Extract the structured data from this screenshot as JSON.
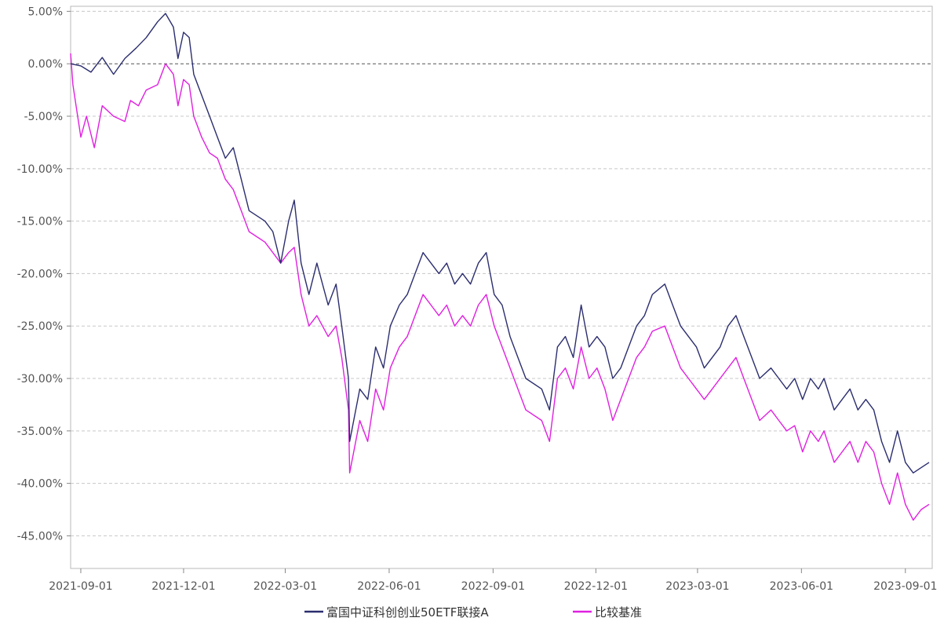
{
  "chart_data": {
    "type": "line",
    "title": "",
    "xlabel": "",
    "ylabel": "",
    "ylim": [
      -0.46,
      0.05
    ],
    "y_ticks": [
      {
        "value": 0.05,
        "label": "5.00%"
      },
      {
        "value": 0.0,
        "label": "0.00%"
      },
      {
        "value": -0.05,
        "label": "-5.00%"
      },
      {
        "value": -0.1,
        "label": "-10.00%"
      },
      {
        "value": -0.15,
        "label": "-15.00%"
      },
      {
        "value": -0.2,
        "label": "-20.00%"
      },
      {
        "value": -0.25,
        "label": "-25.00%"
      },
      {
        "value": -0.3,
        "label": "-30.00%"
      },
      {
        "value": -0.35,
        "label": "-35.00%"
      },
      {
        "value": -0.4,
        "label": "-40.00%"
      },
      {
        "value": -0.45,
        "label": "-45.00%"
      }
    ],
    "x_ticks": [
      "2021-09-01",
      "2021-12-01",
      "2022-03-01",
      "2022-06-01",
      "2022-09-01",
      "2022-12-01",
      "2023-03-01",
      "2023-06-01",
      "2023-09-01"
    ],
    "xlim": [
      "2021-08-23",
      "2023-09-22"
    ],
    "grid": true,
    "legend_position": "bottom-center",
    "series": [
      {
        "name": "富国中证科创创业50ETF联接A",
        "color": "#2b2d6e",
        "points": [
          [
            "2021-08-23",
            0.0
          ],
          [
            "2021-09-01",
            -0.002
          ],
          [
            "2021-09-10",
            -0.008
          ],
          [
            "2021-09-20",
            0.006
          ],
          [
            "2021-09-30",
            -0.01
          ],
          [
            "2021-10-10",
            0.005
          ],
          [
            "2021-10-20",
            0.015
          ],
          [
            "2021-10-29",
            0.025
          ],
          [
            "2021-11-08",
            0.04
          ],
          [
            "2021-11-15",
            0.048
          ],
          [
            "2021-11-22",
            0.035
          ],
          [
            "2021-11-26",
            0.005
          ],
          [
            "2021-12-01",
            0.03
          ],
          [
            "2021-12-06",
            0.025
          ],
          [
            "2021-12-10",
            -0.01
          ],
          [
            "2021-12-17",
            -0.03
          ],
          [
            "2021-12-24",
            -0.05
          ],
          [
            "2021-12-31",
            -0.07
          ],
          [
            "2022-01-07",
            -0.09
          ],
          [
            "2022-01-14",
            -0.08
          ],
          [
            "2022-01-21",
            -0.11
          ],
          [
            "2022-01-28",
            -0.14
          ],
          [
            "2022-02-11",
            -0.15
          ],
          [
            "2022-02-18",
            -0.16
          ],
          [
            "2022-02-25",
            -0.19
          ],
          [
            "2022-03-04",
            -0.15
          ],
          [
            "2022-03-09",
            -0.13
          ],
          [
            "2022-03-15",
            -0.19
          ],
          [
            "2022-03-22",
            -0.22
          ],
          [
            "2022-03-29",
            -0.19
          ],
          [
            "2022-04-08",
            -0.23
          ],
          [
            "2022-04-15",
            -0.21
          ],
          [
            "2022-04-20",
            -0.25
          ],
          [
            "2022-04-26",
            -0.3
          ],
          [
            "2022-04-27",
            -0.36
          ],
          [
            "2022-05-06",
            -0.31
          ],
          [
            "2022-05-13",
            -0.32
          ],
          [
            "2022-05-20",
            -0.27
          ],
          [
            "2022-05-27",
            -0.29
          ],
          [
            "2022-06-02",
            -0.25
          ],
          [
            "2022-06-10",
            -0.23
          ],
          [
            "2022-06-17",
            -0.22
          ],
          [
            "2022-06-24",
            -0.2
          ],
          [
            "2022-07-01",
            -0.18
          ],
          [
            "2022-07-08",
            -0.19
          ],
          [
            "2022-07-15",
            -0.2
          ],
          [
            "2022-07-22",
            -0.19
          ],
          [
            "2022-07-29",
            -0.21
          ],
          [
            "2022-08-05",
            -0.2
          ],
          [
            "2022-08-12",
            -0.21
          ],
          [
            "2022-08-19",
            -0.19
          ],
          [
            "2022-08-26",
            -0.18
          ],
          [
            "2022-09-02",
            -0.22
          ],
          [
            "2022-09-09",
            -0.23
          ],
          [
            "2022-09-16",
            -0.26
          ],
          [
            "2022-09-23",
            -0.28
          ],
          [
            "2022-09-30",
            -0.3
          ],
          [
            "2022-10-14",
            -0.31
          ],
          [
            "2022-10-21",
            -0.33
          ],
          [
            "2022-10-28",
            -0.27
          ],
          [
            "2022-11-04",
            -0.26
          ],
          [
            "2022-11-11",
            -0.28
          ],
          [
            "2022-11-18",
            -0.23
          ],
          [
            "2022-11-25",
            -0.27
          ],
          [
            "2022-12-02",
            -0.26
          ],
          [
            "2022-12-09",
            -0.27
          ],
          [
            "2022-12-16",
            -0.3
          ],
          [
            "2022-12-23",
            -0.29
          ],
          [
            "2022-12-30",
            -0.27
          ],
          [
            "2023-01-06",
            -0.25
          ],
          [
            "2023-01-13",
            -0.24
          ],
          [
            "2023-01-20",
            -0.22
          ],
          [
            "2023-01-31",
            -0.21
          ],
          [
            "2023-02-07",
            -0.23
          ],
          [
            "2023-02-14",
            -0.25
          ],
          [
            "2023-02-21",
            -0.26
          ],
          [
            "2023-02-28",
            -0.27
          ],
          [
            "2023-03-07",
            -0.29
          ],
          [
            "2023-03-14",
            -0.28
          ],
          [
            "2023-03-21",
            -0.27
          ],
          [
            "2023-03-28",
            -0.25
          ],
          [
            "2023-04-04",
            -0.24
          ],
          [
            "2023-04-11",
            -0.26
          ],
          [
            "2023-04-18",
            -0.28
          ],
          [
            "2023-04-25",
            -0.3
          ],
          [
            "2023-05-05",
            -0.29
          ],
          [
            "2023-05-12",
            -0.3
          ],
          [
            "2023-05-19",
            -0.31
          ],
          [
            "2023-05-26",
            -0.3
          ],
          [
            "2023-06-02",
            -0.32
          ],
          [
            "2023-06-09",
            -0.3
          ],
          [
            "2023-06-16",
            -0.31
          ],
          [
            "2023-06-21",
            -0.3
          ],
          [
            "2023-06-30",
            -0.33
          ],
          [
            "2023-07-07",
            -0.32
          ],
          [
            "2023-07-14",
            -0.31
          ],
          [
            "2023-07-21",
            -0.33
          ],
          [
            "2023-07-28",
            -0.32
          ],
          [
            "2023-08-04",
            -0.33
          ],
          [
            "2023-08-11",
            -0.36
          ],
          [
            "2023-08-18",
            -0.38
          ],
          [
            "2023-08-25",
            -0.35
          ],
          [
            "2023-09-01",
            -0.38
          ],
          [
            "2023-09-08",
            -0.39
          ],
          [
            "2023-09-15",
            -0.385
          ],
          [
            "2023-09-22",
            -0.38
          ]
        ]
      },
      {
        "name": "比较基准",
        "color": "#e020e0",
        "points": [
          [
            "2021-08-23",
            0.01
          ],
          [
            "2021-08-25",
            -0.02
          ],
          [
            "2021-09-01",
            -0.07
          ],
          [
            "2021-09-06",
            -0.05
          ],
          [
            "2021-09-13",
            -0.08
          ],
          [
            "2021-09-20",
            -0.04
          ],
          [
            "2021-09-30",
            -0.05
          ],
          [
            "2021-10-10",
            -0.055
          ],
          [
            "2021-10-15",
            -0.035
          ],
          [
            "2021-10-22",
            -0.04
          ],
          [
            "2021-10-29",
            -0.025
          ],
          [
            "2021-11-08",
            -0.02
          ],
          [
            "2021-11-15",
            0.0
          ],
          [
            "2021-11-22",
            -0.01
          ],
          [
            "2021-11-26",
            -0.04
          ],
          [
            "2021-12-01",
            -0.015
          ],
          [
            "2021-12-06",
            -0.02
          ],
          [
            "2021-12-10",
            -0.05
          ],
          [
            "2021-12-17",
            -0.07
          ],
          [
            "2021-12-24",
            -0.085
          ],
          [
            "2021-12-31",
            -0.09
          ],
          [
            "2022-01-07",
            -0.11
          ],
          [
            "2022-01-14",
            -0.12
          ],
          [
            "2022-01-21",
            -0.14
          ],
          [
            "2022-01-28",
            -0.16
          ],
          [
            "2022-02-11",
            -0.17
          ],
          [
            "2022-02-18",
            -0.18
          ],
          [
            "2022-02-25",
            -0.19
          ],
          [
            "2022-03-04",
            -0.18
          ],
          [
            "2022-03-09",
            -0.175
          ],
          [
            "2022-03-15",
            -0.22
          ],
          [
            "2022-03-22",
            -0.25
          ],
          [
            "2022-03-29",
            -0.24
          ],
          [
            "2022-04-08",
            -0.26
          ],
          [
            "2022-04-15",
            -0.25
          ],
          [
            "2022-04-20",
            -0.28
          ],
          [
            "2022-04-26",
            -0.33
          ],
          [
            "2022-04-27",
            -0.39
          ],
          [
            "2022-05-06",
            -0.34
          ],
          [
            "2022-05-13",
            -0.36
          ],
          [
            "2022-05-20",
            -0.31
          ],
          [
            "2022-05-27",
            -0.33
          ],
          [
            "2022-06-02",
            -0.29
          ],
          [
            "2022-06-10",
            -0.27
          ],
          [
            "2022-06-17",
            -0.26
          ],
          [
            "2022-06-24",
            -0.24
          ],
          [
            "2022-07-01",
            -0.22
          ],
          [
            "2022-07-08",
            -0.23
          ],
          [
            "2022-07-15",
            -0.24
          ],
          [
            "2022-07-22",
            -0.23
          ],
          [
            "2022-07-29",
            -0.25
          ],
          [
            "2022-08-05",
            -0.24
          ],
          [
            "2022-08-12",
            -0.25
          ],
          [
            "2022-08-19",
            -0.23
          ],
          [
            "2022-08-26",
            -0.22
          ],
          [
            "2022-09-02",
            -0.25
          ],
          [
            "2022-09-09",
            -0.27
          ],
          [
            "2022-09-16",
            -0.29
          ],
          [
            "2022-09-23",
            -0.31
          ],
          [
            "2022-09-30",
            -0.33
          ],
          [
            "2022-10-14",
            -0.34
          ],
          [
            "2022-10-21",
            -0.36
          ],
          [
            "2022-10-28",
            -0.3
          ],
          [
            "2022-11-04",
            -0.29
          ],
          [
            "2022-11-11",
            -0.31
          ],
          [
            "2022-11-18",
            -0.27
          ],
          [
            "2022-11-25",
            -0.3
          ],
          [
            "2022-12-02",
            -0.29
          ],
          [
            "2022-12-09",
            -0.31
          ],
          [
            "2022-12-16",
            -0.34
          ],
          [
            "2022-12-23",
            -0.32
          ],
          [
            "2022-12-30",
            -0.3
          ],
          [
            "2023-01-06",
            -0.28
          ],
          [
            "2023-01-13",
            -0.27
          ],
          [
            "2023-01-20",
            -0.255
          ],
          [
            "2023-01-31",
            -0.25
          ],
          [
            "2023-02-07",
            -0.27
          ],
          [
            "2023-02-14",
            -0.29
          ],
          [
            "2023-02-21",
            -0.3
          ],
          [
            "2023-02-28",
            -0.31
          ],
          [
            "2023-03-07",
            -0.32
          ],
          [
            "2023-03-14",
            -0.31
          ],
          [
            "2023-03-21",
            -0.3
          ],
          [
            "2023-03-28",
            -0.29
          ],
          [
            "2023-04-04",
            -0.28
          ],
          [
            "2023-04-11",
            -0.3
          ],
          [
            "2023-04-18",
            -0.32
          ],
          [
            "2023-04-25",
            -0.34
          ],
          [
            "2023-05-05",
            -0.33
          ],
          [
            "2023-05-12",
            -0.34
          ],
          [
            "2023-05-19",
            -0.35
          ],
          [
            "2023-05-26",
            -0.345
          ],
          [
            "2023-06-02",
            -0.37
          ],
          [
            "2023-06-09",
            -0.35
          ],
          [
            "2023-06-16",
            -0.36
          ],
          [
            "2023-06-21",
            -0.35
          ],
          [
            "2023-06-30",
            -0.38
          ],
          [
            "2023-07-07",
            -0.37
          ],
          [
            "2023-07-14",
            -0.36
          ],
          [
            "2023-07-21",
            -0.38
          ],
          [
            "2023-07-28",
            -0.36
          ],
          [
            "2023-08-04",
            -0.37
          ],
          [
            "2023-08-11",
            -0.4
          ],
          [
            "2023-08-18",
            -0.42
          ],
          [
            "2023-08-25",
            -0.39
          ],
          [
            "2023-09-01",
            -0.42
          ],
          [
            "2023-09-08",
            -0.435
          ],
          [
            "2023-09-15",
            -0.425
          ],
          [
            "2023-09-22",
            -0.42
          ]
        ]
      }
    ]
  }
}
